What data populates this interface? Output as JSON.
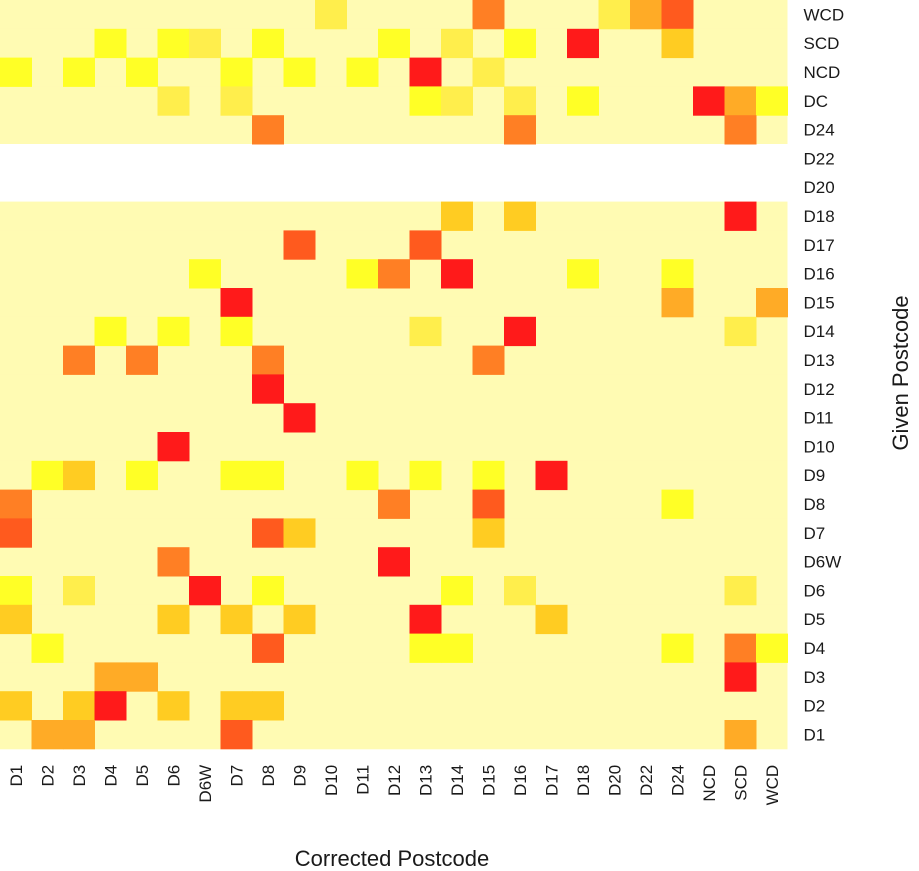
{
  "chart_data": {
    "type": "heatmap",
    "xlabel": "Corrected Postcode",
    "ylabel": "Given Postcode",
    "x_categories": [
      "D1",
      "D2",
      "D3",
      "D4",
      "D5",
      "D6",
      "D6W",
      "D7",
      "D8",
      "D9",
      "D10",
      "D11",
      "D12",
      "D13",
      "D14",
      "D15",
      "D16",
      "D17",
      "D18",
      "D20",
      "D22",
      "D24",
      "NCD",
      "SCD",
      "WCD"
    ],
    "y_categories": [
      "WCD",
      "SCD",
      "NCD",
      "DC",
      "D24",
      "D22",
      "D20",
      "D18",
      "D17",
      "D16",
      "D15",
      "D14",
      "D13",
      "D12",
      "D11",
      "D10",
      "D9",
      "D8",
      "D7",
      "D6W",
      "D6",
      "D5",
      "D4",
      "D3",
      "D2",
      "D1"
    ],
    "empty_rows": [
      "D22",
      "D20"
    ],
    "color_scale": {
      "background": "#fffbb3",
      "missing": "#ffffff",
      "levels": [
        "#fffbb3",
        "#ffff26",
        "#ffee4c",
        "#ffcc22",
        "#ffab26",
        "#ff7f24",
        "#ff5a1e",
        "#ff1a1a"
      ]
    },
    "cells": [
      {
        "y": "WCD",
        "x": "D10",
        "level": 2
      },
      {
        "y": "WCD",
        "x": "D15",
        "level": 5
      },
      {
        "y": "WCD",
        "x": "D20",
        "level": 2
      },
      {
        "y": "WCD",
        "x": "D22",
        "level": 4
      },
      {
        "y": "WCD",
        "x": "D24",
        "level": 6
      },
      {
        "y": "SCD",
        "x": "D4",
        "level": 1
      },
      {
        "y": "SCD",
        "x": "D6",
        "level": 1
      },
      {
        "y": "SCD",
        "x": "D6W",
        "level": 2
      },
      {
        "y": "SCD",
        "x": "D8",
        "level": 1
      },
      {
        "y": "SCD",
        "x": "D12",
        "level": 1
      },
      {
        "y": "SCD",
        "x": "D14",
        "level": 2
      },
      {
        "y": "SCD",
        "x": "D16",
        "level": 1
      },
      {
        "y": "SCD",
        "x": "D18",
        "level": 7
      },
      {
        "y": "SCD",
        "x": "D24",
        "level": 3
      },
      {
        "y": "NCD",
        "x": "D1",
        "level": 1
      },
      {
        "y": "NCD",
        "x": "D3",
        "level": 1
      },
      {
        "y": "NCD",
        "x": "D5",
        "level": 1
      },
      {
        "y": "NCD",
        "x": "D7",
        "level": 1
      },
      {
        "y": "NCD",
        "x": "D9",
        "level": 1
      },
      {
        "y": "NCD",
        "x": "D11",
        "level": 1
      },
      {
        "y": "NCD",
        "x": "D13",
        "level": 7
      },
      {
        "y": "NCD",
        "x": "D15",
        "level": 2
      },
      {
        "y": "DC",
        "x": "D6",
        "level": 2
      },
      {
        "y": "DC",
        "x": "D7",
        "level": 2
      },
      {
        "y": "DC",
        "x": "D13",
        "level": 1
      },
      {
        "y": "DC",
        "x": "D14",
        "level": 2
      },
      {
        "y": "DC",
        "x": "D16",
        "level": 2
      },
      {
        "y": "DC",
        "x": "D18",
        "level": 1
      },
      {
        "y": "DC",
        "x": "NCD",
        "level": 7
      },
      {
        "y": "DC",
        "x": "SCD",
        "level": 4
      },
      {
        "y": "DC",
        "x": "WCD",
        "level": 1
      },
      {
        "y": "D24",
        "x": "D8",
        "level": 5
      },
      {
        "y": "D24",
        "x": "D16",
        "level": 5
      },
      {
        "y": "D24",
        "x": "SCD",
        "level": 5
      },
      {
        "y": "D18",
        "x": "D14",
        "level": 3
      },
      {
        "y": "D18",
        "x": "D16",
        "level": 3
      },
      {
        "y": "D18",
        "x": "SCD",
        "level": 7
      },
      {
        "y": "D17",
        "x": "D9",
        "level": 6
      },
      {
        "y": "D17",
        "x": "D13",
        "level": 6
      },
      {
        "y": "D16",
        "x": "D6W",
        "level": 1
      },
      {
        "y": "D16",
        "x": "D11",
        "level": 1
      },
      {
        "y": "D16",
        "x": "D12",
        "level": 5
      },
      {
        "y": "D16",
        "x": "D14",
        "level": 7
      },
      {
        "y": "D16",
        "x": "D18",
        "level": 1
      },
      {
        "y": "D16",
        "x": "D24",
        "level": 1
      },
      {
        "y": "D15",
        "x": "D7",
        "level": 7
      },
      {
        "y": "D15",
        "x": "D24",
        "level": 4
      },
      {
        "y": "D15",
        "x": "WCD",
        "level": 4
      },
      {
        "y": "D14",
        "x": "D4",
        "level": 1
      },
      {
        "y": "D14",
        "x": "D6",
        "level": 1
      },
      {
        "y": "D14",
        "x": "D7",
        "level": 1
      },
      {
        "y": "D14",
        "x": "D13",
        "level": 2
      },
      {
        "y": "D14",
        "x": "D16",
        "level": 7
      },
      {
        "y": "D14",
        "x": "SCD",
        "level": 2
      },
      {
        "y": "D13",
        "x": "D3",
        "level": 5
      },
      {
        "y": "D13",
        "x": "D5",
        "level": 5
      },
      {
        "y": "D13",
        "x": "D8",
        "level": 5
      },
      {
        "y": "D13",
        "x": "D15",
        "level": 5
      },
      {
        "y": "D12",
        "x": "D8",
        "level": 7
      },
      {
        "y": "D11",
        "x": "D9",
        "level": 7
      },
      {
        "y": "D10",
        "x": "D6",
        "level": 7
      },
      {
        "y": "D9",
        "x": "D2",
        "level": 1
      },
      {
        "y": "D9",
        "x": "D3",
        "level": 3
      },
      {
        "y": "D9",
        "x": "D5",
        "level": 1
      },
      {
        "y": "D9",
        "x": "D7",
        "level": 1
      },
      {
        "y": "D9",
        "x": "D8",
        "level": 1
      },
      {
        "y": "D9",
        "x": "D11",
        "level": 1
      },
      {
        "y": "D9",
        "x": "D13",
        "level": 1
      },
      {
        "y": "D9",
        "x": "D15",
        "level": 1
      },
      {
        "y": "D9",
        "x": "D17",
        "level": 7
      },
      {
        "y": "D8",
        "x": "D1",
        "level": 5
      },
      {
        "y": "D8",
        "x": "D12",
        "level": 5
      },
      {
        "y": "D8",
        "x": "D15",
        "level": 6
      },
      {
        "y": "D8",
        "x": "D24",
        "level": 1
      },
      {
        "y": "D7",
        "x": "D1",
        "level": 6
      },
      {
        "y": "D7",
        "x": "D8",
        "level": 6
      },
      {
        "y": "D7",
        "x": "D9",
        "level": 3
      },
      {
        "y": "D7",
        "x": "D15",
        "level": 3
      },
      {
        "y": "D6W",
        "x": "D6",
        "level": 5
      },
      {
        "y": "D6W",
        "x": "D12",
        "level": 7
      },
      {
        "y": "D6",
        "x": "D1",
        "level": 1
      },
      {
        "y": "D6",
        "x": "D3",
        "level": 2
      },
      {
        "y": "D6",
        "x": "D6W",
        "level": 7
      },
      {
        "y": "D6",
        "x": "D8",
        "level": 1
      },
      {
        "y": "D6",
        "x": "D14",
        "level": 1
      },
      {
        "y": "D6",
        "x": "D16",
        "level": 2
      },
      {
        "y": "D6",
        "x": "SCD",
        "level": 2
      },
      {
        "y": "D5",
        "x": "D1",
        "level": 3
      },
      {
        "y": "D5",
        "x": "D6",
        "level": 3
      },
      {
        "y": "D5",
        "x": "D7",
        "level": 3
      },
      {
        "y": "D5",
        "x": "D9",
        "level": 3
      },
      {
        "y": "D5",
        "x": "D13",
        "level": 7
      },
      {
        "y": "D5",
        "x": "D17",
        "level": 3
      },
      {
        "y": "D4",
        "x": "D2",
        "level": 1
      },
      {
        "y": "D4",
        "x": "D8",
        "level": 6
      },
      {
        "y": "D4",
        "x": "D13",
        "level": 1
      },
      {
        "y": "D4",
        "x": "D14",
        "level": 1
      },
      {
        "y": "D4",
        "x": "D24",
        "level": 1
      },
      {
        "y": "D4",
        "x": "SCD",
        "level": 5
      },
      {
        "y": "D4",
        "x": "WCD",
        "level": 1
      },
      {
        "y": "D3",
        "x": "D4",
        "level": 4
      },
      {
        "y": "D3",
        "x": "D5",
        "level": 4
      },
      {
        "y": "D3",
        "x": "SCD",
        "level": 7
      },
      {
        "y": "D2",
        "x": "D1",
        "level": 3
      },
      {
        "y": "D2",
        "x": "D3",
        "level": 3
      },
      {
        "y": "D2",
        "x": "D4",
        "level": 7
      },
      {
        "y": "D2",
        "x": "D6",
        "level": 3
      },
      {
        "y": "D2",
        "x": "D7",
        "level": 3
      },
      {
        "y": "D2",
        "x": "D8",
        "level": 3
      },
      {
        "y": "D1",
        "x": "D2",
        "level": 4
      },
      {
        "y": "D1",
        "x": "D3",
        "level": 4
      },
      {
        "y": "D1",
        "x": "D7",
        "level": 6
      },
      {
        "y": "D1",
        "x": "SCD",
        "level": 4
      }
    ]
  }
}
